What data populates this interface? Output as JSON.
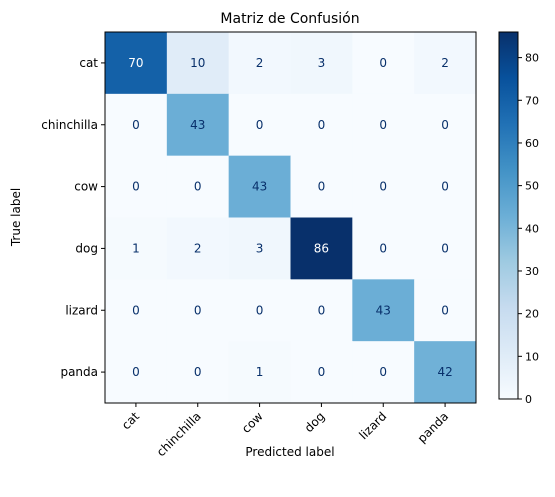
{
  "chart_data": {
    "type": "heatmap",
    "title": "Matriz de Confusión",
    "xlabel": "Predicted label",
    "ylabel": "True label",
    "x_categories": [
      "cat",
      "chinchilla",
      "cow",
      "dog",
      "lizard",
      "panda"
    ],
    "y_categories": [
      "cat",
      "chinchilla",
      "cow",
      "dog",
      "lizard",
      "panda"
    ],
    "values": [
      [
        70,
        10,
        2,
        3,
        0,
        2
      ],
      [
        0,
        43,
        0,
        0,
        0,
        0
      ],
      [
        0,
        0,
        43,
        0,
        0,
        0
      ],
      [
        1,
        2,
        3,
        86,
        0,
        0
      ],
      [
        0,
        0,
        0,
        0,
        43,
        0
      ],
      [
        0,
        0,
        1,
        0,
        0,
        42
      ]
    ],
    "colormap": "Blues",
    "colorbar": {
      "range": [
        0,
        86
      ],
      "ticks": [
        0,
        10,
        20,
        30,
        40,
        50,
        60,
        70,
        80
      ]
    },
    "grid": false
  }
}
